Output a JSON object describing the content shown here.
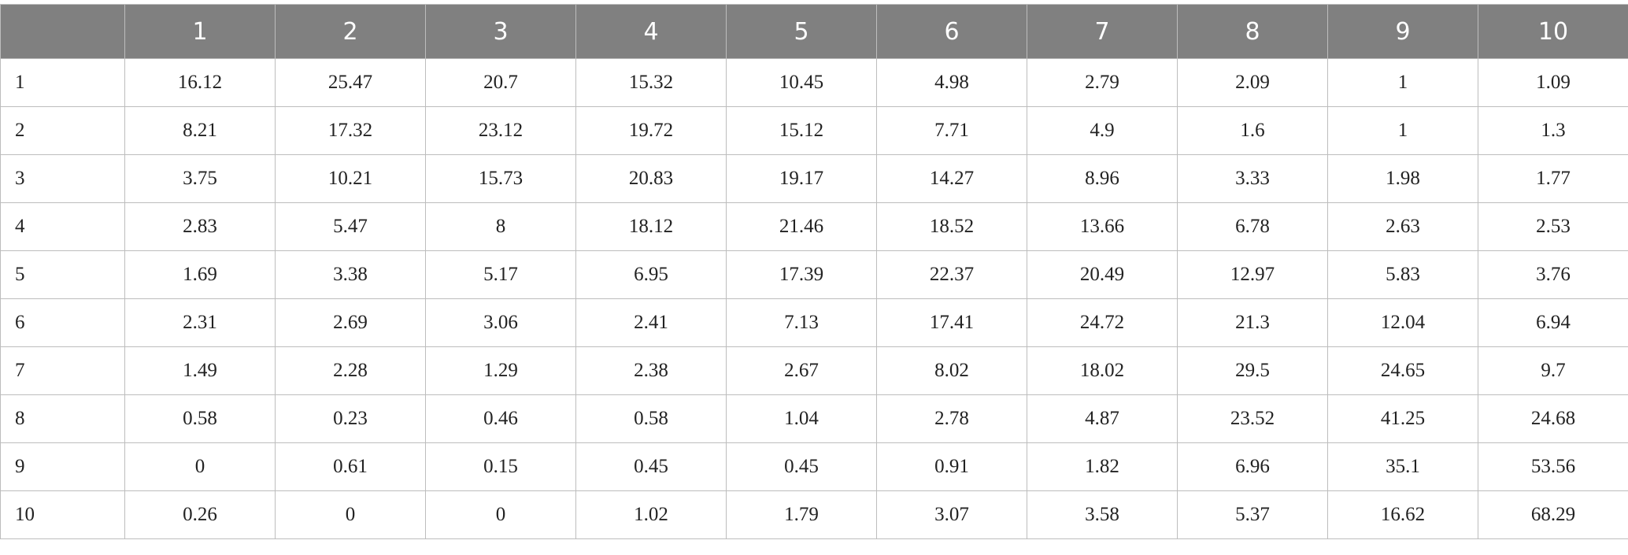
{
  "table": {
    "columns": [
      "1",
      "2",
      "3",
      "4",
      "5",
      "6",
      "7",
      "8",
      "9",
      "10"
    ],
    "rows": [
      {
        "label": "1",
        "values": [
          16.12,
          25.47,
          20.7,
          15.32,
          10.45,
          4.98,
          2.79,
          2.09,
          1,
          1.09
        ]
      },
      {
        "label": "2",
        "values": [
          8.21,
          17.32,
          23.12,
          19.72,
          15.12,
          7.71,
          4.9,
          1.6,
          1,
          1.3
        ]
      },
      {
        "label": "3",
        "values": [
          3.75,
          10.21,
          15.73,
          20.83,
          19.17,
          14.27,
          8.96,
          3.33,
          1.98,
          1.77
        ]
      },
      {
        "label": "4",
        "values": [
          2.83,
          5.47,
          8,
          18.12,
          21.46,
          18.52,
          13.66,
          6.78,
          2.63,
          2.53
        ]
      },
      {
        "label": "5",
        "values": [
          1.69,
          3.38,
          5.17,
          6.95,
          17.39,
          22.37,
          20.49,
          12.97,
          5.83,
          3.76
        ]
      },
      {
        "label": "6",
        "values": [
          2.31,
          2.69,
          3.06,
          2.41,
          7.13,
          17.41,
          24.72,
          21.3,
          12.04,
          6.94
        ]
      },
      {
        "label": "7",
        "values": [
          1.49,
          2.28,
          1.29,
          2.38,
          2.67,
          8.02,
          18.02,
          29.5,
          24.65,
          9.7
        ]
      },
      {
        "label": "8",
        "values": [
          0.58,
          0.23,
          0.46,
          0.58,
          1.04,
          2.78,
          4.87,
          23.52,
          41.25,
          24.68
        ]
      },
      {
        "label": "9",
        "values": [
          0,
          0.61,
          0.15,
          0.45,
          0.45,
          0.91,
          1.82,
          6.96,
          35.1,
          53.56
        ]
      },
      {
        "label": "10",
        "values": [
          0.26,
          0,
          0,
          1.02,
          1.79,
          3.07,
          3.58,
          5.37,
          16.62,
          68.29
        ]
      }
    ]
  }
}
